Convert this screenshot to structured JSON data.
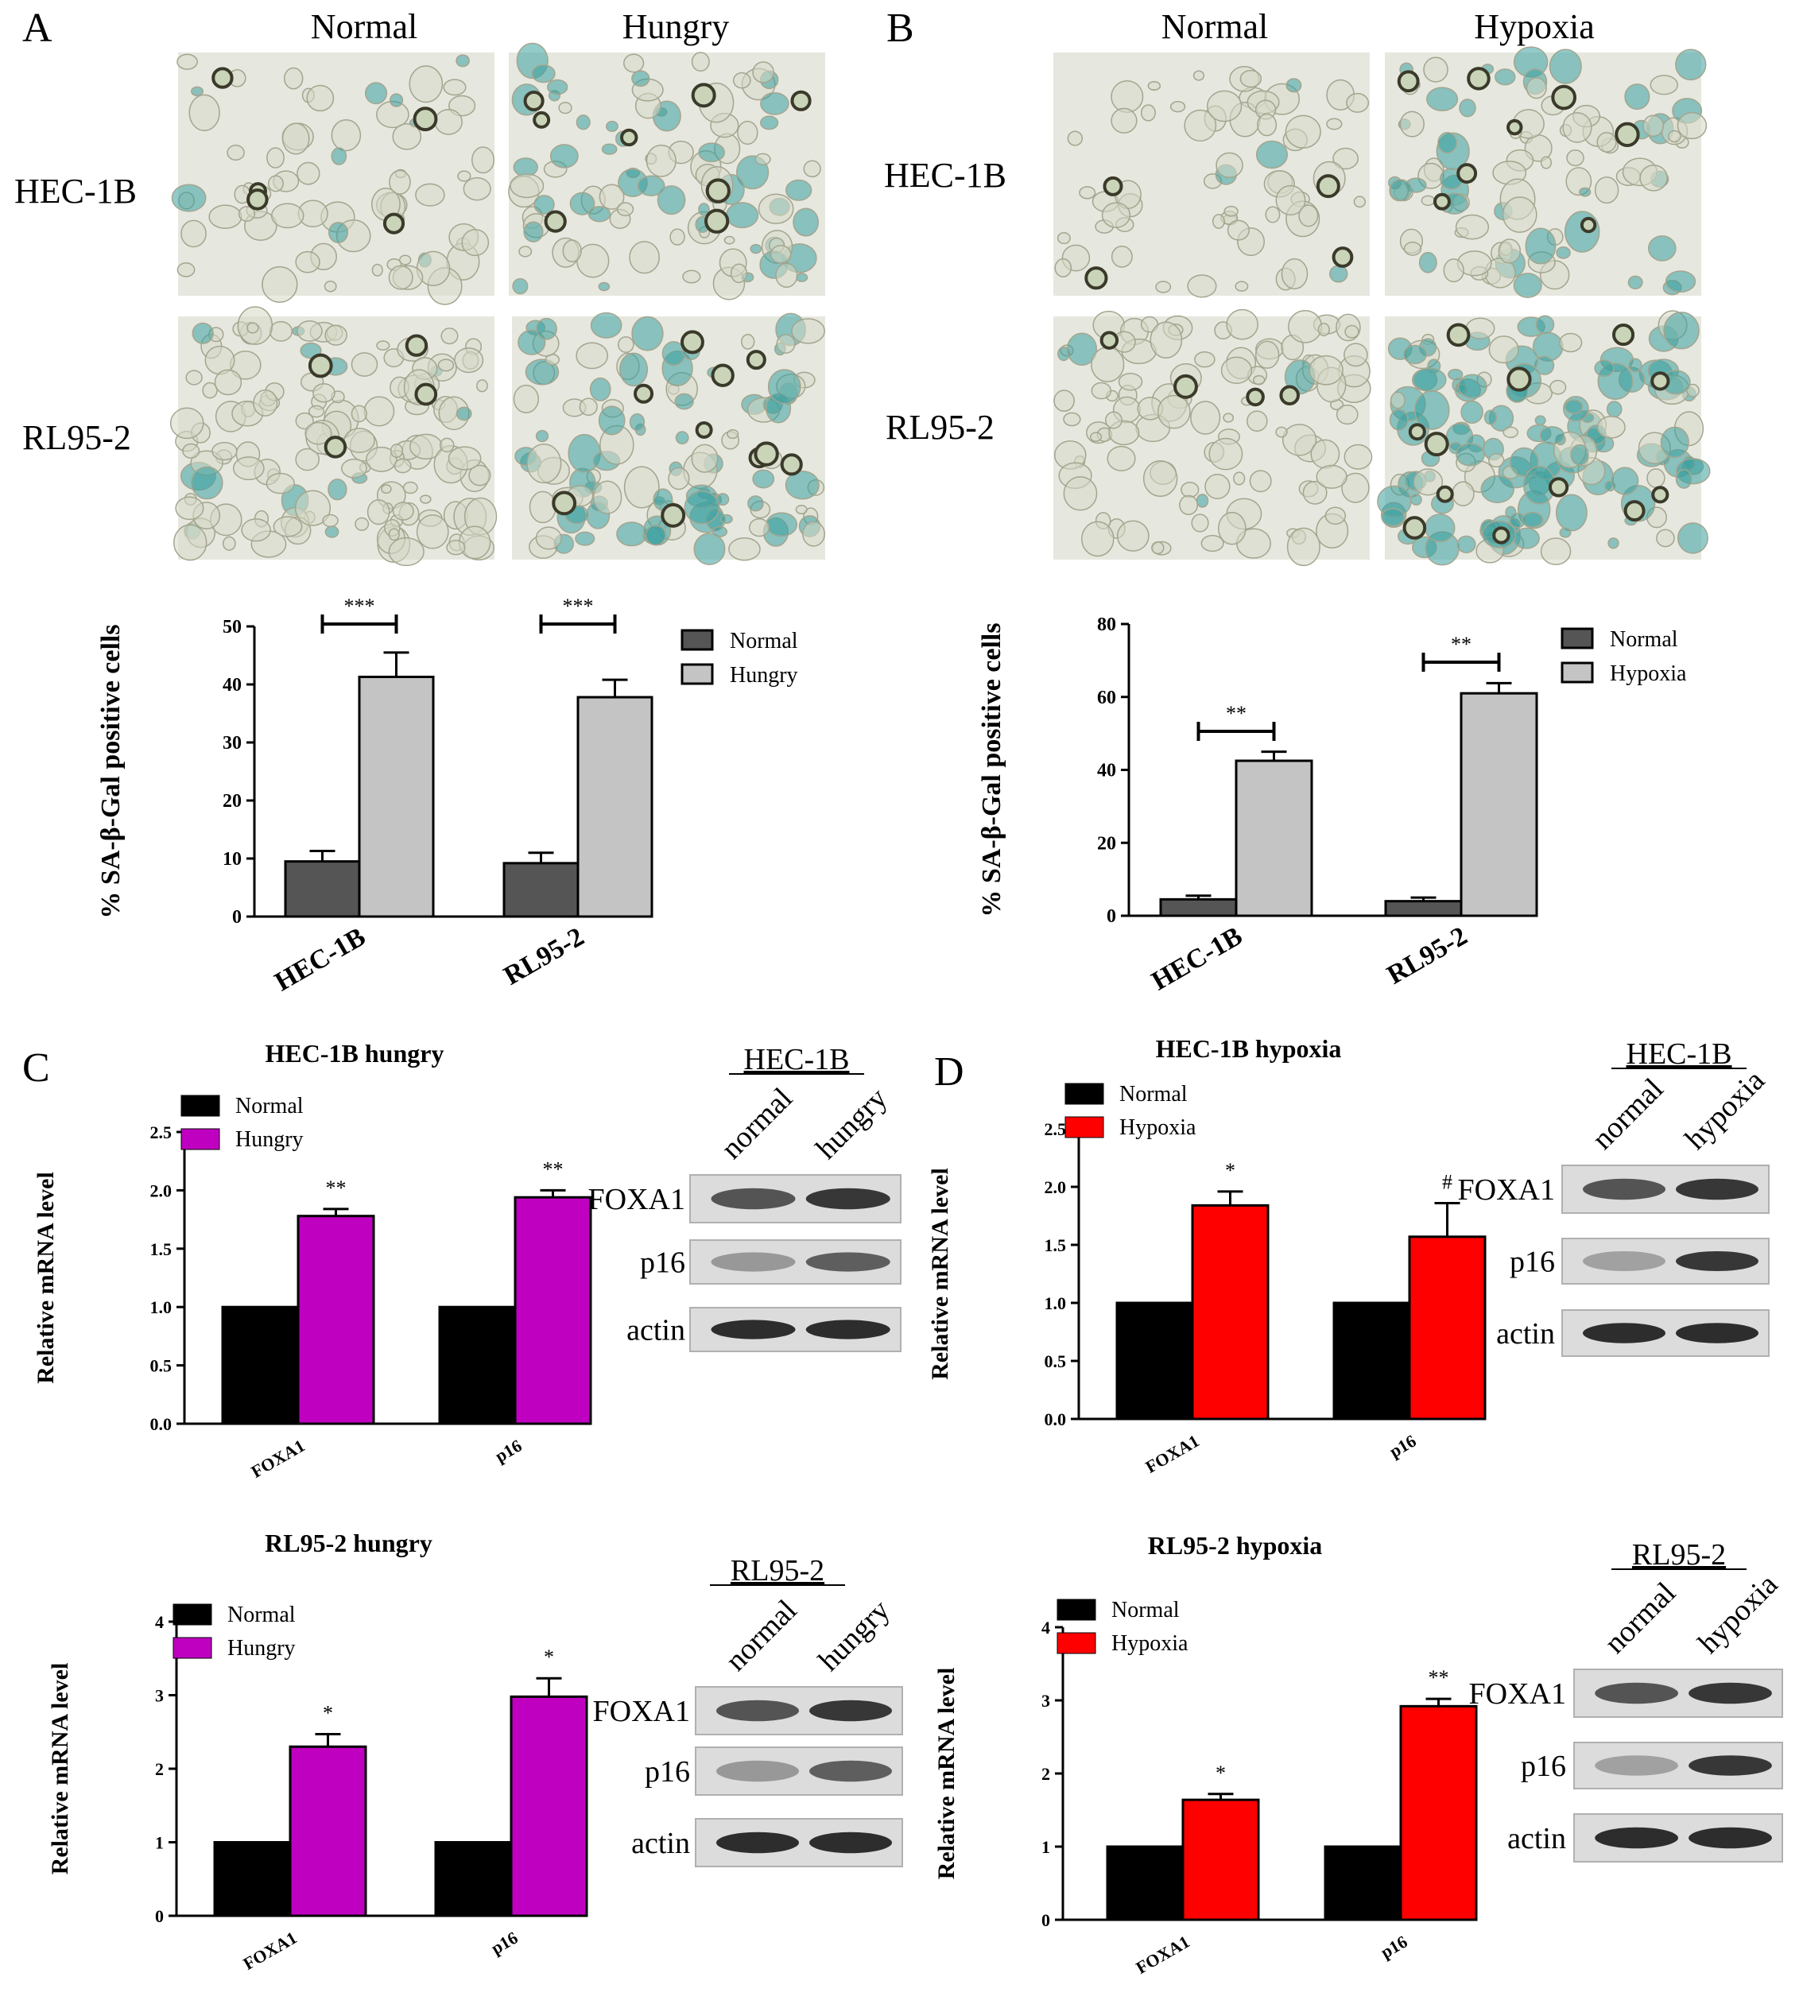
{
  "panel_letters": [
    "A",
    "B",
    "C",
    "D"
  ],
  "micrographs": [
    {
      "panel": "A",
      "columns": [
        "Normal",
        "Hungry"
      ],
      "rows": [
        "HEC-1B",
        "RL95-2"
      ]
    },
    {
      "panel": "B",
      "columns": [
        "Normal",
        "Hypoxia"
      ],
      "rows": [
        "HEC-1B",
        "RL95-2"
      ]
    }
  ],
  "colors": {
    "sa_normal": "#555555",
    "sa_treat": "#c4c4c4",
    "mrna_normal": "#000000",
    "hungry": "#c000c0",
    "hypoxia": "#ff0000",
    "stain_blue": "#3aa0a0",
    "cell_outline": "#3b3a2a"
  },
  "blots": [
    {
      "panel": "C",
      "cell": "HEC-1B",
      "lanes": [
        "normal",
        "hungry"
      ],
      "rows": [
        "FOXA1",
        "p16",
        "actin"
      ]
    },
    {
      "panel": "C",
      "cell": "RL95-2",
      "lanes": [
        "normal",
        "hungry"
      ],
      "rows": [
        "FOXA1",
        "p16",
        "actin"
      ]
    },
    {
      "panel": "D",
      "cell": "HEC-1B",
      "lanes": [
        "normal",
        "hypoxia"
      ],
      "rows": [
        "FOXA1",
        "p16",
        "actin"
      ]
    },
    {
      "panel": "D",
      "cell": "RL95-2",
      "lanes": [
        "normal",
        "hypoxia"
      ],
      "rows": [
        "FOXA1",
        "p16",
        "actin"
      ]
    }
  ],
  "chart_data": [
    {
      "type": "bar",
      "panel": "A",
      "title": "",
      "xlabel": "",
      "ylabel": "% SA-β-Gal positive cells",
      "categories": [
        "HEC-1B",
        "RL95-2"
      ],
      "ylim": [
        0,
        50
      ],
      "yticks": [
        0,
        10,
        20,
        30,
        40,
        50
      ],
      "legend_position": "top-right",
      "series": [
        {
          "name": "Normal",
          "color": "#555555",
          "values": [
            9.5,
            9.2
          ],
          "errors": [
            1.8,
            1.8
          ]
        },
        {
          "name": "Hungry",
          "color": "#c4c4c4",
          "values": [
            41.3,
            37.8
          ],
          "errors": [
            4.2,
            3.0
          ]
        }
      ],
      "significance": [
        "***",
        "***"
      ]
    },
    {
      "type": "bar",
      "panel": "B",
      "title": "",
      "xlabel": "",
      "ylabel": "% SA-β-Gal positive cells",
      "categories": [
        "HEC-1B",
        "RL95-2"
      ],
      "ylim": [
        0,
        80
      ],
      "yticks": [
        0,
        20,
        40,
        60,
        80
      ],
      "legend_position": "top-right",
      "series": [
        {
          "name": "Normal",
          "color": "#555555",
          "values": [
            4.5,
            4.0
          ],
          "errors": [
            1.0,
            1.0
          ]
        },
        {
          "name": "Hypoxia",
          "color": "#c4c4c4",
          "values": [
            42.5,
            61.0
          ],
          "errors": [
            2.5,
            2.8
          ]
        }
      ],
      "significance": [
        "**",
        "**"
      ]
    },
    {
      "type": "bar",
      "panel": "C",
      "title": "HEC-1B hungry",
      "xlabel": "",
      "ylabel": "Relative mRNA level",
      "categories": [
        "FOXA1",
        "p16"
      ],
      "ylim": [
        0,
        2.5
      ],
      "yticks": [
        "0.0",
        "0.5",
        "1.0",
        "1.5",
        "2.0",
        "2.5"
      ],
      "legend_position": "top-left",
      "series": [
        {
          "name": "Normal",
          "color": "#000000",
          "values": [
            1.0,
            1.0
          ],
          "errors": [
            0,
            0
          ]
        },
        {
          "name": "Hungry",
          "color": "#c000c0",
          "values": [
            1.78,
            1.94
          ],
          "errors": [
            0.06,
            0.06
          ]
        }
      ],
      "significance": [
        "**",
        "**"
      ]
    },
    {
      "type": "bar",
      "panel": "D",
      "title": "HEC-1B hypoxia",
      "xlabel": "",
      "ylabel": "Relative mRNA level",
      "categories": [
        "FOXA1",
        "p16"
      ],
      "ylim": [
        0,
        2.5
      ],
      "yticks": [
        "0.0",
        "0.5",
        "1.0",
        "1.5",
        "2.0",
        "2.5"
      ],
      "legend_position": "top-left",
      "series": [
        {
          "name": "Normal",
          "color": "#000000",
          "values": [
            1.0,
            1.0
          ],
          "errors": [
            0,
            0
          ]
        },
        {
          "name": "Hypoxia",
          "color": "#ff0000",
          "values": [
            1.84,
            1.57
          ],
          "errors": [
            0.12,
            0.29
          ]
        }
      ],
      "significance": [
        "*",
        "#"
      ]
    },
    {
      "type": "bar",
      "panel": "C",
      "title": "RL95-2 hungry",
      "xlabel": "",
      "ylabel": "Relative mRNA level",
      "categories": [
        "FOXA1",
        "p16"
      ],
      "ylim": [
        0,
        4
      ],
      "yticks": [
        0,
        1,
        2,
        3,
        4
      ],
      "legend_position": "top-left",
      "series": [
        {
          "name": "Normal",
          "color": "#000000",
          "values": [
            1.0,
            1.0
          ],
          "errors": [
            0,
            0
          ]
        },
        {
          "name": "Hungry",
          "color": "#c000c0",
          "values": [
            2.3,
            2.98
          ],
          "errors": [
            0.17,
            0.25
          ]
        }
      ],
      "significance": [
        "*",
        "*"
      ]
    },
    {
      "type": "bar",
      "panel": "D",
      "title": "RL95-2 hypoxia",
      "xlabel": "",
      "ylabel": "Relative mRNA level",
      "categories": [
        "FOXA1",
        "p16"
      ],
      "ylim": [
        0,
        4
      ],
      "yticks": [
        0,
        1,
        2,
        3,
        4
      ],
      "legend_position": "top-left",
      "series": [
        {
          "name": "Normal",
          "color": "#000000",
          "values": [
            1.0,
            1.0
          ],
          "errors": [
            0,
            0
          ]
        },
        {
          "name": "Hypoxia",
          "color": "#ff0000",
          "values": [
            1.64,
            2.92
          ],
          "errors": [
            0.08,
            0.1
          ]
        }
      ],
      "significance": [
        "*",
        "**"
      ]
    }
  ]
}
